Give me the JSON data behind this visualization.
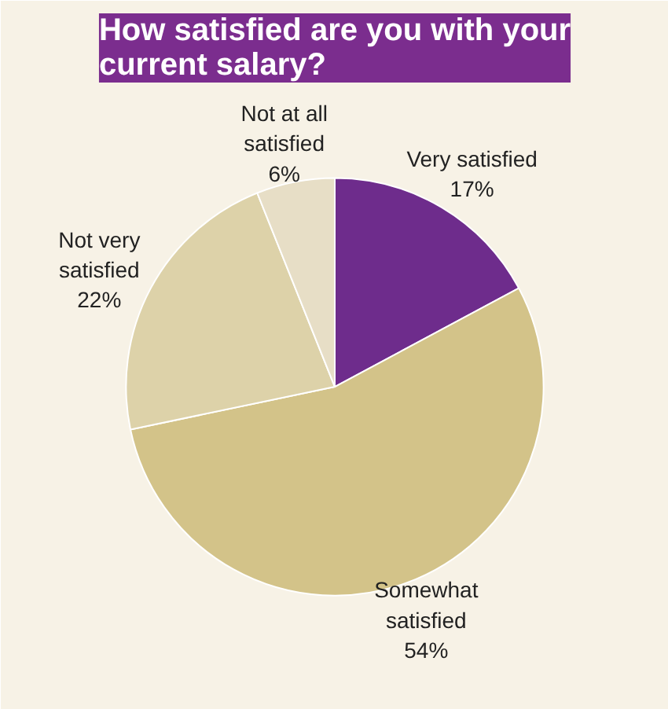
{
  "chart_data": {
    "type": "pie",
    "title": "How satisfied are you with your current salary?",
    "categories": [
      "Very satisfied",
      "Somewhat satisfied",
      "Not very satisfied",
      "Not at all satisfied"
    ],
    "values": [
      17,
      54,
      22,
      6
    ],
    "value_labels": [
      "17%",
      "54%",
      "22%",
      "6%"
    ],
    "colors": [
      "#6e2c8c",
      "#d3c389",
      "#ddd2a9",
      "#e7dec6"
    ],
    "legend": false
  }
}
